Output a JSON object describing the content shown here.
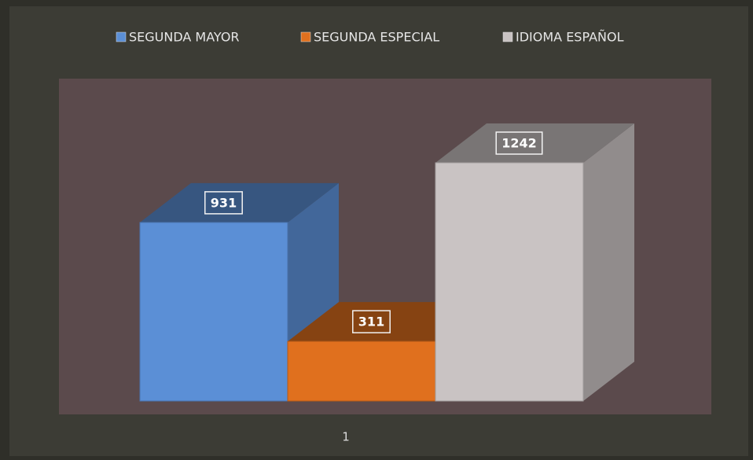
{
  "chart_data": {
    "type": "bar3d",
    "categories": [
      "1"
    ],
    "series": [
      {
        "name": "SEGUNDA MAYOR",
        "color": "#5b8fd6",
        "values": [
          931
        ]
      },
      {
        "name": "SEGUNDA ESPECIAL",
        "color": "#e0701e",
        "values": [
          311
        ]
      },
      {
        "name": "IDIOMA  ESPAÑOL",
        "color": "#c9c3c3",
        "values": [
          1242
        ]
      }
    ],
    "legend": "top"
  }
}
